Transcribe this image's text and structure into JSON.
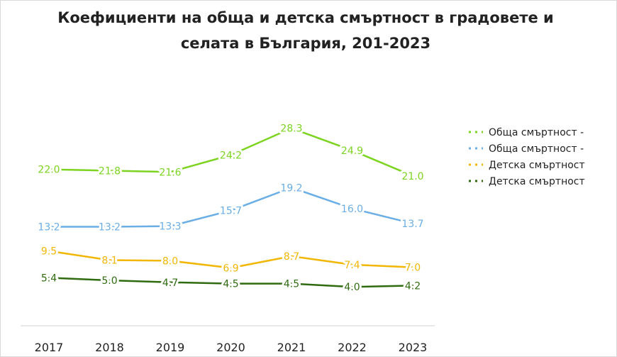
{
  "chart_data": {
    "type": "line",
    "title_line1": "Коефициенти на обща и детска смъртност в градовете и",
    "title_line2": "селата в България, 201-2023",
    "categories": [
      "2017",
      "2018",
      "2019",
      "2020",
      "2021",
      "2022",
      "2023"
    ],
    "series": [
      {
        "name": "Обща смъртност -",
        "color": "#7cd420",
        "values": [
          22.0,
          21.8,
          21.6,
          24.2,
          28.3,
          24.9,
          21.0
        ],
        "labels": [
          "22.0",
          "21.8",
          "21.6",
          "24.2",
          "28.3",
          "24.9",
          "21.0"
        ]
      },
      {
        "name": "Обща смъртност -",
        "color": "#6aaee6",
        "values": [
          13.2,
          13.2,
          13.3,
          15.7,
          19.2,
          16.0,
          13.7
        ],
        "labels": [
          "13.2",
          "13.2",
          "13.3",
          "15.7",
          "19.2",
          "16.0",
          "13.7"
        ]
      },
      {
        "name": "Детска смъртност",
        "color": "#f2b705",
        "values": [
          9.5,
          8.1,
          8.0,
          6.9,
          8.7,
          7.4,
          7.0
        ],
        "labels": [
          "9.5",
          "8.1",
          "8.0",
          "6.9",
          "8.7",
          "7.4",
          "7.0"
        ]
      },
      {
        "name": "Детска смъртност",
        "color": "#2f6b0f",
        "values": [
          5.4,
          5.0,
          4.7,
          4.5,
          4.5,
          4.0,
          4.2
        ],
        "labels": [
          "5.4",
          "5.0",
          "4.7",
          "4.5",
          "4.5",
          "4.0",
          "4.2"
        ]
      }
    ],
    "legend_position": "right",
    "grid": false,
    "y_axis_visible": false,
    "ylim": [
      0,
      30
    ]
  }
}
